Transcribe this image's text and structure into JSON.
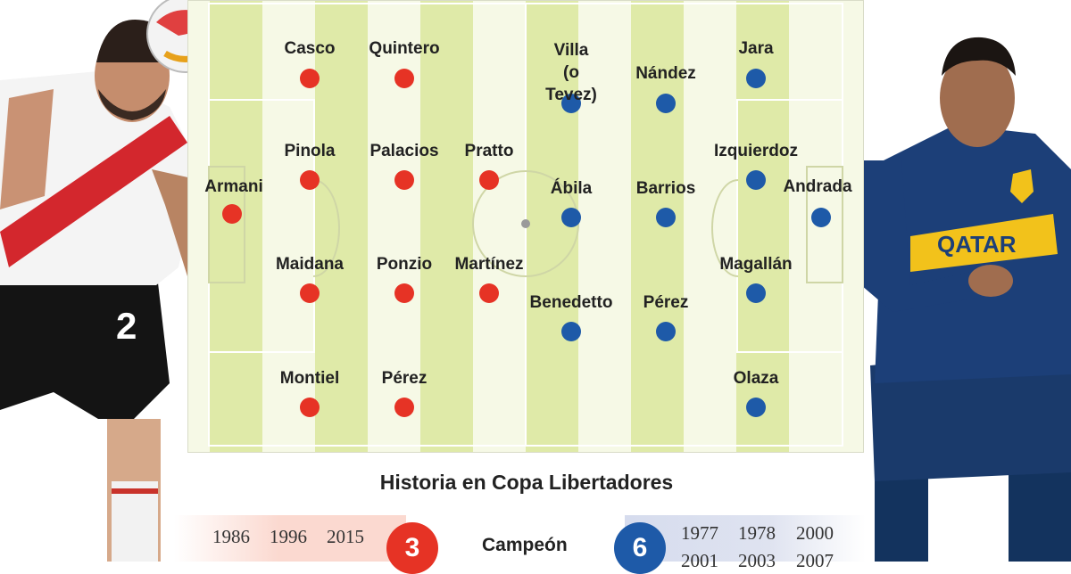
{
  "colors": {
    "river": "#e63325",
    "boca": "#1e5aa8",
    "pitch_light": "#f6f9e6",
    "pitch_stripe": "#dfeaa8"
  },
  "river_players": [
    "Casco",
    "Quintero",
    "Pinola",
    "Palacios",
    "Pratto",
    "Armani",
    "Maidana",
    "Ponzio",
    "Martínez",
    "Montiel",
    "Pérez"
  ],
  "boca_players": [
    "Villa\n(o Tevez)",
    "Nández",
    "Jara",
    "Izquierdoz",
    "Ábila",
    "Barrios",
    "Andrada",
    "Magallán",
    "Benedetto",
    "Pérez",
    "Olaza"
  ],
  "history": {
    "title": "Historia en Copa Libertadores",
    "label": "Campeón",
    "river": {
      "titles": "3",
      "years": [
        "1986",
        "1996",
        "2015"
      ]
    },
    "boca": {
      "titles": "6",
      "years": [
        "1977",
        "1978",
        "2000",
        "2001",
        "2003",
        "2007"
      ]
    }
  },
  "photos": {
    "left": "River Plate player heading ball",
    "right": "Boca Juniors player in Qatar Airways shirt"
  }
}
